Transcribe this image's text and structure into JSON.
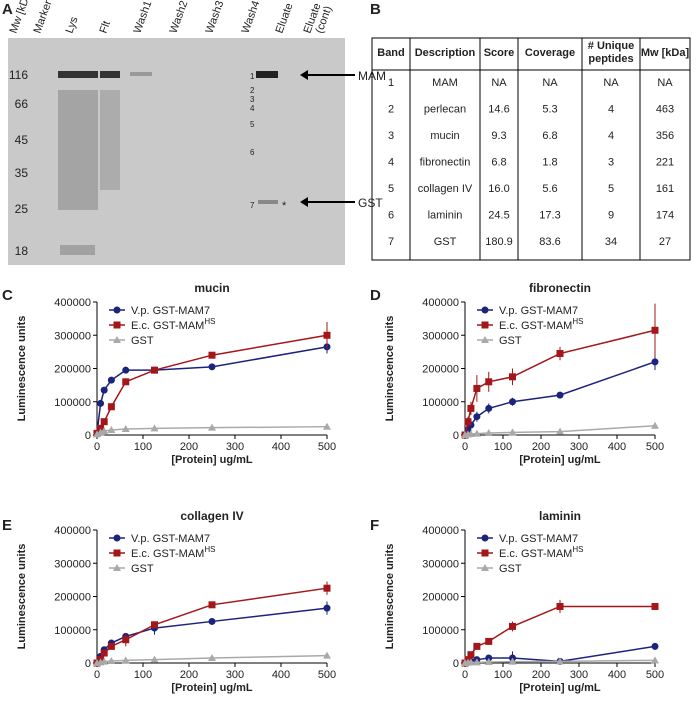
{
  "panels": [
    "A",
    "B",
    "C",
    "D",
    "E",
    "F"
  ],
  "gel": {
    "lanes": [
      "Mw [kDa]",
      "Marker",
      "Lys",
      "Flt",
      "Wash1",
      "Wash2",
      "Wash3",
      "Wash4",
      "Eluate",
      "Eluate",
      "(cont)"
    ],
    "markers": [
      "116",
      "66",
      "45",
      "35",
      "25",
      "18"
    ],
    "bands": [
      "1",
      "2",
      "3",
      "4",
      "5",
      "6",
      "7"
    ],
    "asterisk": "*",
    "arrows": [
      "MAM",
      "GST"
    ]
  },
  "table": {
    "header": [
      "Band",
      "Description",
      "Score",
      "Coverage",
      "# Unique",
      "peptides",
      "Mw [kDa]"
    ],
    "rows": [
      [
        "1",
        "MAM",
        "NA",
        "NA",
        "NA",
        "NA"
      ],
      [
        "2",
        "perlecan",
        "14.6",
        "5.3",
        "4",
        "463"
      ],
      [
        "3",
        "mucin",
        "9.3",
        "6.8",
        "4",
        "356"
      ],
      [
        "4",
        "fibronectin",
        "6.8",
        "1.8",
        "3",
        "221"
      ],
      [
        "5",
        "collagen IV",
        "16.0",
        "5.6",
        "5",
        "161"
      ],
      [
        "6",
        "laminin",
        "24.5",
        "17.3",
        "9",
        "174"
      ],
      [
        "7",
        "GST",
        "180.9",
        "83.6",
        "34",
        "27"
      ]
    ]
  },
  "chart_data": [
    {
      "type": "line",
      "title": "mucin",
      "x_label": "[Protein] ug/mL",
      "y_label": "Luminescence units",
      "x": [
        0,
        7.8,
        15.6,
        31.25,
        62.5,
        125,
        250,
        500
      ],
      "xlim": [
        0,
        500
      ],
      "xticks": [
        0,
        100,
        200,
        300,
        400,
        500
      ],
      "ylim": [
        0,
        400000
      ],
      "yticks": [
        0,
        100000,
        200000,
        300000,
        400000
      ],
      "series": [
        {
          "name": "V.p. GST-MAM7",
          "color": "#1c237c",
          "marker": "circle",
          "values": [
            5000,
            95000,
            135000,
            165000,
            195000,
            195000,
            205000,
            265000
          ],
          "errors": [
            2000,
            5000,
            8000,
            8000,
            5000,
            6000,
            5000,
            20000
          ]
        },
        {
          "name": "E.c. GST-MAM",
          "name_sup": "HS",
          "color": "#a3161a",
          "marker": "square",
          "values": [
            5000,
            20000,
            40000,
            85000,
            160000,
            195000,
            240000,
            300000
          ],
          "errors": [
            2000,
            5000,
            5000,
            8000,
            10000,
            8000,
            8000,
            40000
          ]
        },
        {
          "name": "GST",
          "color": "#a9a9a9",
          "marker": "triangle",
          "values": [
            2000,
            8000,
            12000,
            15000,
            18000,
            20000,
            22000,
            25000
          ],
          "errors": [
            1000,
            1000,
            2000,
            2000,
            2000,
            2000,
            2000,
            3000
          ]
        }
      ]
    },
    {
      "type": "line",
      "title": "fibronectin",
      "x_label": "[Protein] ug/mL",
      "y_label": "Luminescence units",
      "x": [
        0,
        7.8,
        15.6,
        31.25,
        62.5,
        125,
        250,
        500
      ],
      "xlim": [
        0,
        500
      ],
      "xticks": [
        0,
        100,
        200,
        300,
        400,
        500
      ],
      "ylim": [
        0,
        400000
      ],
      "yticks": [
        0,
        100000,
        200000,
        300000,
        400000
      ],
      "series": [
        {
          "name": "V.p. GST-MAM7",
          "color": "#1c237c",
          "marker": "circle",
          "values": [
            0,
            15000,
            30000,
            55000,
            80000,
            100000,
            120000,
            220000
          ],
          "errors": [
            2000,
            5000,
            8000,
            15000,
            15000,
            12000,
            5000,
            25000
          ]
        },
        {
          "name": "E.c. GST-MAM",
          "name_sup": "HS",
          "color": "#a3161a",
          "marker": "square",
          "values": [
            0,
            40000,
            80000,
            140000,
            160000,
            175000,
            245000,
            315000
          ],
          "errors": [
            2000,
            15000,
            20000,
            40000,
            30000,
            25000,
            20000,
            80000
          ]
        },
        {
          "name": "GST",
          "color": "#a9a9a9",
          "marker": "triangle",
          "values": [
            0,
            2000,
            3000,
            4000,
            6000,
            8000,
            10000,
            28000
          ],
          "errors": [
            1000,
            1000,
            1000,
            1000,
            2000,
            2000,
            2000,
            10000
          ]
        }
      ]
    },
    {
      "type": "line",
      "title": "collagen IV",
      "x_label": "[Protein] ug/mL",
      "y_label": "Luminescence units",
      "x": [
        0,
        7.8,
        15.6,
        31.25,
        62.5,
        125,
        250,
        500
      ],
      "xlim": [
        0,
        500
      ],
      "xticks": [
        0,
        100,
        200,
        300,
        400,
        500
      ],
      "ylim": [
        0,
        400000
      ],
      "yticks": [
        0,
        100000,
        200000,
        300000,
        400000
      ],
      "series": [
        {
          "name": "V.p. GST-MAM7",
          "color": "#1c237c",
          "marker": "circle",
          "values": [
            0,
            20000,
            40000,
            60000,
            80000,
            105000,
            125000,
            165000
          ],
          "errors": [
            2000,
            5000,
            5000,
            8000,
            10000,
            20000,
            5000,
            20000
          ]
        },
        {
          "name": "E.c. GST-MAM",
          "name_sup": "HS",
          "color": "#a3161a",
          "marker": "square",
          "values": [
            0,
            10000,
            30000,
            50000,
            70000,
            115000,
            175000,
            225000
          ],
          "errors": [
            2000,
            5000,
            5000,
            8000,
            20000,
            10000,
            8000,
            20000
          ]
        },
        {
          "name": "GST",
          "color": "#a9a9a9",
          "marker": "triangle",
          "values": [
            0,
            2000,
            4000,
            6000,
            8000,
            10000,
            15000,
            22000
          ],
          "errors": [
            1000,
            1000,
            1000,
            1000,
            1000,
            2000,
            2000,
            3000
          ]
        }
      ]
    },
    {
      "type": "line",
      "title": "laminin",
      "x_label": "[Protein] ug/mL",
      "y_label": "Luminescence units",
      "x": [
        0,
        7.8,
        15.6,
        31.25,
        62.5,
        125,
        250,
        500
      ],
      "xlim": [
        0,
        500
      ],
      "xticks": [
        0,
        100,
        200,
        300,
        400,
        500
      ],
      "ylim": [
        0,
        400000
      ],
      "yticks": [
        0,
        100000,
        200000,
        300000,
        400000
      ],
      "series": [
        {
          "name": "V.p. GST-MAM7",
          "color": "#1c237c",
          "marker": "circle",
          "values": [
            0,
            2000,
            5000,
            10000,
            15000,
            15000,
            5000,
            50000
          ],
          "errors": [
            1000,
            2000,
            3000,
            5000,
            8000,
            20000,
            3000,
            10000
          ]
        },
        {
          "name": "E.c. GST-MAM",
          "name_sup": "HS",
          "color": "#a3161a",
          "marker": "square",
          "values": [
            0,
            10000,
            25000,
            50000,
            65000,
            110000,
            170000,
            170000
          ],
          "errors": [
            2000,
            5000,
            5000,
            8000,
            10000,
            15000,
            20000,
            10000
          ]
        },
        {
          "name": "GST",
          "color": "#a9a9a9",
          "marker": "triangle",
          "values": [
            0,
            1000,
            2000,
            2000,
            3000,
            4000,
            5000,
            8000
          ],
          "errors": [
            500,
            500,
            500,
            500,
            1000,
            1000,
            1000,
            2000
          ]
        }
      ]
    }
  ]
}
